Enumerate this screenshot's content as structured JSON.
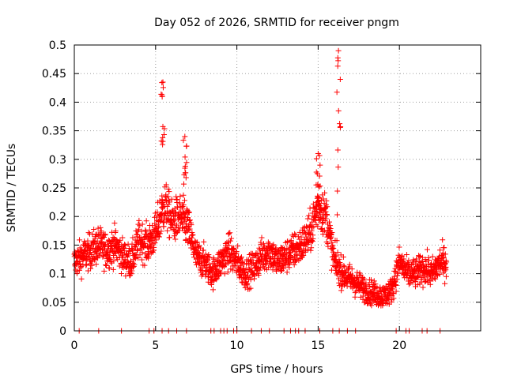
{
  "chart_data": {
    "type": "scatter",
    "title": "Day 052 of 2026, SRMTID for receiver pngm",
    "xlabel": "GPS time / hours",
    "ylabel": "SRMTID / TECUs",
    "xlim": [
      0,
      25
    ],
    "ylim": [
      0,
      0.5
    ],
    "xticks": [
      0,
      5,
      10,
      15,
      20
    ],
    "xtick_labels": [
      "0",
      "5",
      "10",
      "15",
      "20"
    ],
    "yticks": [
      0,
      0.05,
      0.1,
      0.15,
      0.2,
      0.25,
      0.3,
      0.35,
      0.4,
      0.45,
      0.5
    ],
    "ytick_labels": [
      "0",
      "0.05",
      "0.1",
      "0.15",
      "0.2",
      "0.25",
      "0.3",
      "0.35",
      "0.4",
      "0.45",
      "0.5"
    ],
    "grid": true,
    "marker": "+",
    "series": [
      {
        "name": "SRMTID",
        "color": "#ff0000",
        "profile_description_points": [
          [
            0.0,
            0.12
          ],
          [
            0.5,
            0.13
          ],
          [
            1.0,
            0.14
          ],
          [
            1.5,
            0.15
          ],
          [
            2.0,
            0.14
          ],
          [
            2.5,
            0.15
          ],
          [
            3.0,
            0.13
          ],
          [
            3.5,
            0.12
          ],
          [
            4.0,
            0.16
          ],
          [
            4.5,
            0.15
          ],
          [
            5.0,
            0.17
          ],
          [
            5.3,
            0.2
          ],
          [
            5.6,
            0.22
          ],
          [
            6.0,
            0.19
          ],
          [
            6.5,
            0.2
          ],
          [
            7.0,
            0.18
          ],
          [
            7.5,
            0.13
          ],
          [
            8.0,
            0.12
          ],
          [
            8.5,
            0.1
          ],
          [
            9.0,
            0.12
          ],
          [
            9.5,
            0.14
          ],
          [
            10.0,
            0.12
          ],
          [
            10.5,
            0.1
          ],
          [
            11.0,
            0.11
          ],
          [
            11.5,
            0.13
          ],
          [
            12.0,
            0.14
          ],
          [
            12.5,
            0.12
          ],
          [
            13.0,
            0.13
          ],
          [
            13.5,
            0.14
          ],
          [
            14.0,
            0.15
          ],
          [
            14.5,
            0.17
          ],
          [
            15.0,
            0.22
          ],
          [
            15.5,
            0.2
          ],
          [
            16.0,
            0.12
          ],
          [
            16.5,
            0.1
          ],
          [
            17.0,
            0.09
          ],
          [
            17.5,
            0.08
          ],
          [
            18.0,
            0.07
          ],
          [
            18.5,
            0.065
          ],
          [
            19.0,
            0.06
          ],
          [
            19.5,
            0.07
          ],
          [
            20.0,
            0.12
          ],
          [
            20.5,
            0.1
          ],
          [
            21.0,
            0.1
          ],
          [
            21.5,
            0.11
          ],
          [
            22.0,
            0.1
          ],
          [
            22.5,
            0.12
          ],
          [
            22.9,
            0.12
          ]
        ],
        "spikes": [
          {
            "x": 5.45,
            "peak": 0.435
          },
          {
            "x": 6.8,
            "peak": 0.34
          },
          {
            "x": 15.0,
            "peak": 0.31
          },
          {
            "x": 16.25,
            "peak": 0.49
          }
        ],
        "zero_points_x": [
          0.3,
          1.5,
          2.9,
          4.6,
          4.9,
          5.4,
          5.8,
          6.3,
          6.9,
          8.4,
          8.6,
          9.0,
          9.2,
          9.4,
          9.8,
          10.0,
          10.9,
          11.5,
          12.0,
          12.9,
          13.3,
          13.6,
          13.8,
          14.2,
          15.1,
          15.9,
          16.3,
          16.8,
          17.3,
          19.8,
          20.4,
          20.6,
          21.4,
          21.7,
          22.5
        ]
      }
    ]
  }
}
